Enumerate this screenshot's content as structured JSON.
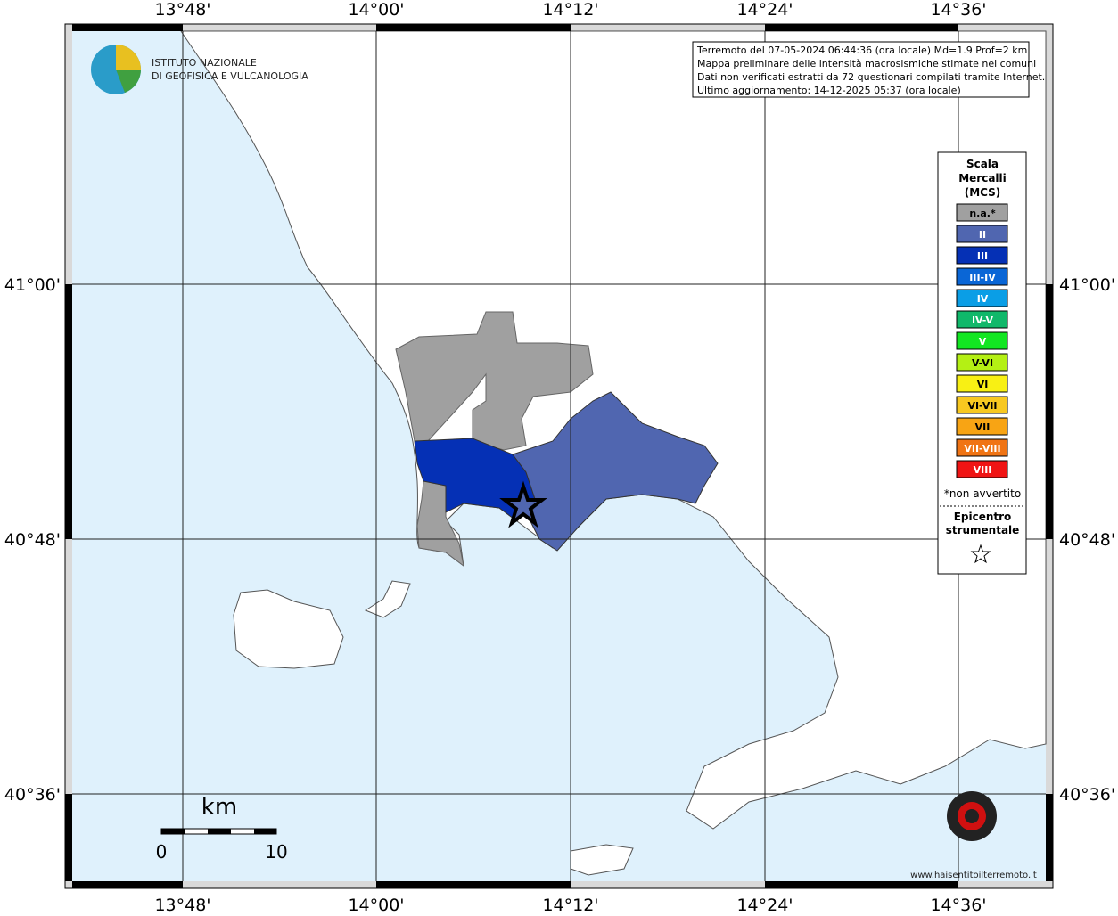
{
  "header": {
    "lines": [
      "Terremoto del 07-05-2024 06:44:36 (ora locale) Md=1.9 Prof=2 km",
      "Mappa preliminare delle intensità macrosismiche stimate nei comuni",
      "Dati non verificati estratti da 72 questionari compilati tramite Internet.",
      "Ultimo aggiornamento: 14-12-2025 05:37 (ora locale)"
    ]
  },
  "logo": {
    "line1": "ISTITUTO NAZIONALE",
    "line2": "DI GEOFISICA E VULCANOLOGIA"
  },
  "axes": {
    "longitudes": [
      "13°48'",
      "14°00'",
      "14°12'",
      "14°24'",
      "14°36'"
    ],
    "latitudes": [
      "41°00'",
      "40°48'",
      "40°36'"
    ]
  },
  "legend": {
    "title": [
      "Scala",
      "Mercalli",
      "(MCS)"
    ],
    "items": [
      {
        "label": "n.a.*",
        "color": "#a0a0a0"
      },
      {
        "label": "II",
        "color": "#5066b0"
      },
      {
        "label": "III",
        "color": "#0530b5"
      },
      {
        "label": "III-IV",
        "color": "#0a66d6"
      },
      {
        "label": "IV",
        "color": "#0a9ee6"
      },
      {
        "label": "IV-V",
        "color": "#10b86a"
      },
      {
        "label": "V",
        "color": "#12e622"
      },
      {
        "label": "V-VI",
        "color": "#b4f014"
      },
      {
        "label": "VI",
        "color": "#f8f014"
      },
      {
        "label": "VI-VII",
        "color": "#f8c820"
      },
      {
        "label": "VII",
        "color": "#f8a414"
      },
      {
        "label": "VII-VIII",
        "color": "#f07414"
      },
      {
        "label": "VIII",
        "color": "#f01414"
      }
    ],
    "footnote": "*non avvertito",
    "epicenter": [
      "Epicentro",
      "strumentale"
    ]
  },
  "scale_bar": {
    "unit": "km",
    "start": "0",
    "end": "10"
  },
  "watermark": "www.haisentitoilterremoto.it"
}
